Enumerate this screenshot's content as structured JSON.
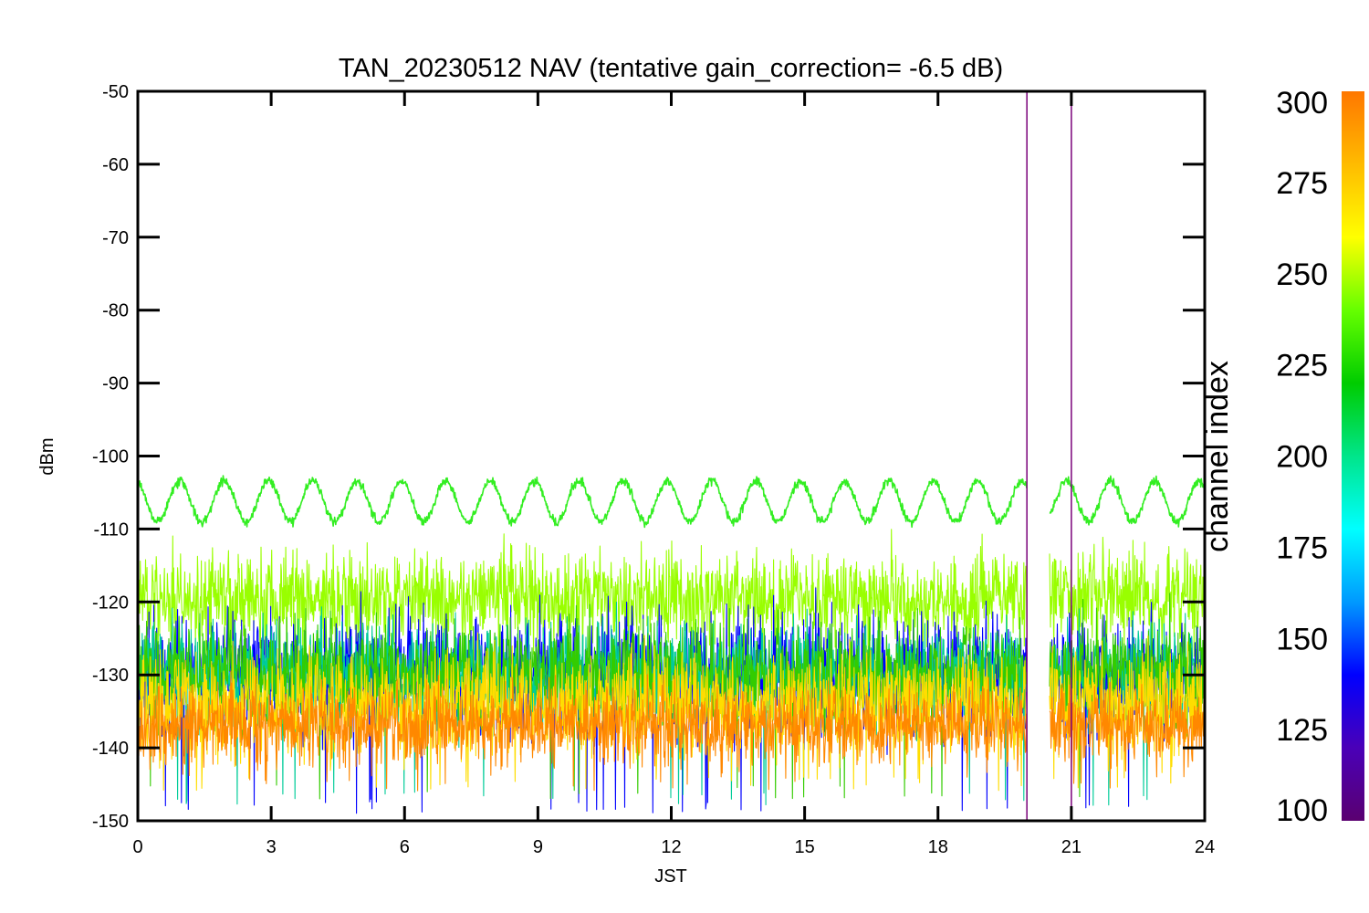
{
  "chart_data": {
    "type": "line",
    "title": "TAN_20230512 NAV (tentative gain_correction= -6.5 dB)",
    "xlabel": "JST",
    "ylabel": "dBm",
    "xlim": [
      0,
      24
    ],
    "ylim": [
      -150,
      -50
    ],
    "xticks": [
      0,
      3,
      6,
      9,
      12,
      15,
      18,
      21,
      24
    ],
    "yticks": [
      -50,
      -60,
      -70,
      -80,
      -90,
      -100,
      -110,
      -120,
      -130,
      -140,
      -150
    ],
    "grid": false,
    "data_gap_jst": [
      20.0,
      20.5
    ],
    "outage_markers_jst": [
      20.0,
      21.0
    ],
    "marker_color": "#7a007a",
    "series": [
      {
        "channel_index": 245,
        "color": "#33ee22",
        "kind": "sinusoid",
        "mean_dbm": -106.2,
        "amplitude_dbm": 2.8,
        "period_hours": 0.997,
        "noise_dbm": 0.3
      },
      {
        "channel_index": 262,
        "color": "#99ff00",
        "kind": "noise-band",
        "mean_dbm": -119.5,
        "spread_dbm": 3.2,
        "max_spike_dbm": -114
      },
      {
        "channel_index": 150,
        "color": "#0000ff",
        "kind": "noise-band",
        "mean_dbm": -130,
        "spread_dbm": 4.0,
        "max_spike_dbm": -124,
        "min_spike_dbm": -149
      },
      {
        "channel_index": 200,
        "color": "#00cc99",
        "kind": "noise-band",
        "mean_dbm": -130,
        "spread_dbm": 3.5,
        "max_spike_dbm": -124,
        "min_spike_dbm": -148
      },
      {
        "channel_index": 230,
        "color": "#33cc00",
        "kind": "noise-band",
        "mean_dbm": -130,
        "spread_dbm": 3.5,
        "max_spike_dbm": -125,
        "min_spike_dbm": -147
      },
      {
        "channel_index": 275,
        "color": "#ffdd00",
        "kind": "noise-band",
        "mean_dbm": -134,
        "spread_dbm": 3.5,
        "max_spike_dbm": -127,
        "min_spike_dbm": -146
      },
      {
        "channel_index": 300,
        "color": "#ff8800",
        "kind": "noise-band",
        "mean_dbm": -137,
        "spread_dbm": 2.6,
        "max_spike_dbm": -130,
        "min_spike_dbm": -146
      }
    ],
    "colorbar": {
      "label": "channel index",
      "range": [
        100,
        300
      ],
      "ticks": [
        300,
        275,
        250,
        225,
        200,
        175,
        150,
        125,
        100
      ],
      "stops": [
        "#5a0070",
        "#4a00b8",
        "#0000ff",
        "#0099ff",
        "#00ffff",
        "#00e58a",
        "#00cc00",
        "#66ff00",
        "#ffff00",
        "#ffbb00",
        "#ff7700"
      ]
    }
  }
}
